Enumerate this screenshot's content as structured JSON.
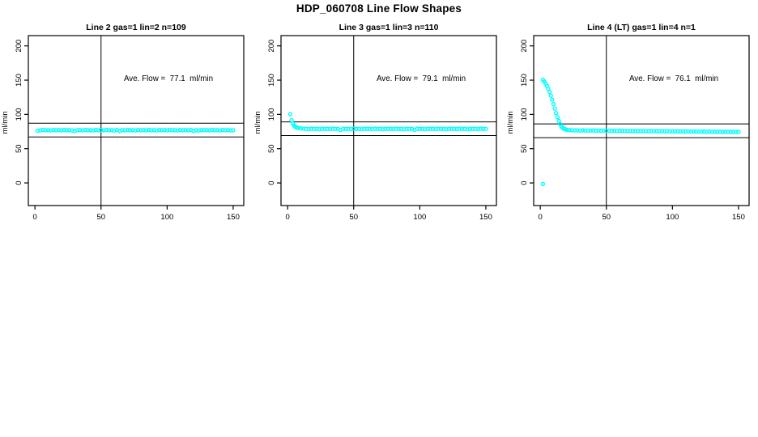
{
  "page": {
    "title": "HDP_060708  Line Flow Shapes"
  },
  "colors": {
    "marker": "#00FFFF",
    "axis": "#000000",
    "background": "#FFFFFF"
  },
  "chart_data": [
    {
      "type": "scatter",
      "title": "Line 2 gas=1 lin=2 n=109",
      "annotation": "Ave. Flow =  77.1  ml/min",
      "avg_flow": 77.1,
      "n": 109,
      "ylabel": "ml/min",
      "xlim": [
        -5,
        158
      ],
      "ylim": [
        -33,
        215
      ],
      "xticks": [
        0,
        50,
        100,
        150
      ],
      "yticks": [
        0,
        50,
        100,
        150,
        200
      ],
      "vline_x": 50,
      "hlines": [
        87.1,
        67.1
      ],
      "marker_color": "#00FFFF",
      "points": [
        [
          2,
          76.2
        ],
        [
          4,
          76.7
        ],
        [
          6,
          77.4
        ],
        [
          8,
          76.9
        ],
        [
          10,
          77.1
        ],
        [
          12,
          76.6
        ],
        [
          14,
          77.3
        ],
        [
          16,
          77.0
        ],
        [
          18,
          77.2
        ],
        [
          20,
          76.7
        ],
        [
          22,
          77.4
        ],
        [
          24,
          76.9
        ],
        [
          26,
          77.1
        ],
        [
          28,
          76.6
        ],
        [
          30,
          75.6
        ],
        [
          32,
          77.0
        ],
        [
          34,
          77.2
        ],
        [
          36,
          76.7
        ],
        [
          38,
          77.4
        ],
        [
          40,
          76.9
        ],
        [
          42,
          77.1
        ],
        [
          44,
          76.6
        ],
        [
          46,
          77.3
        ],
        [
          48,
          77.0
        ],
        [
          50,
          77.2
        ],
        [
          52,
          76.7
        ],
        [
          54,
          77.4
        ],
        [
          56,
          76.9
        ],
        [
          58,
          77.1
        ],
        [
          60,
          76.6
        ],
        [
          62,
          77.3
        ],
        [
          64,
          75.8
        ],
        [
          66,
          77.2
        ],
        [
          68,
          76.7
        ],
        [
          70,
          77.4
        ],
        [
          72,
          76.9
        ],
        [
          74,
          77.1
        ],
        [
          76,
          76.6
        ],
        [
          78,
          77.3
        ],
        [
          80,
          77.0
        ],
        [
          82,
          77.2
        ],
        [
          84,
          76.7
        ],
        [
          86,
          77.4
        ],
        [
          88,
          76.9
        ],
        [
          90,
          77.1
        ],
        [
          92,
          76.6
        ],
        [
          94,
          77.3
        ],
        [
          96,
          77.0
        ],
        [
          98,
          77.2
        ],
        [
          100,
          76.7
        ],
        [
          102,
          77.4
        ],
        [
          104,
          76.9
        ],
        [
          106,
          77.1
        ],
        [
          108,
          76.6
        ],
        [
          110,
          77.3
        ],
        [
          112,
          77.0
        ],
        [
          114,
          77.2
        ],
        [
          116,
          76.7
        ],
        [
          118,
          77.4
        ],
        [
          120,
          75.9
        ],
        [
          122,
          77.1
        ],
        [
          124,
          76.6
        ],
        [
          126,
          77.3
        ],
        [
          128,
          77.0
        ],
        [
          130,
          77.2
        ],
        [
          132,
          76.7
        ],
        [
          134,
          77.4
        ],
        [
          136,
          76.9
        ],
        [
          138,
          77.1
        ],
        [
          140,
          76.6
        ],
        [
          142,
          77.3
        ],
        [
          144,
          77.0
        ],
        [
          146,
          77.2
        ],
        [
          148,
          76.7
        ],
        [
          150,
          77.0
        ]
      ]
    },
    {
      "type": "scatter",
      "title": "Line 3 gas=1 lin=3 n=110",
      "annotation": "Ave. Flow =  79.1  ml/min",
      "avg_flow": 79.1,
      "n": 110,
      "ylabel": "ml/min",
      "xlim": [
        -5,
        158
      ],
      "ylim": [
        -33,
        215
      ],
      "xticks": [
        0,
        50,
        100,
        150
      ],
      "yticks": [
        0,
        50,
        100,
        150,
        200
      ],
      "vline_x": 50,
      "hlines": [
        89.1,
        69.1
      ],
      "marker_color": "#00FFFF",
      "points": [
        [
          2,
          100.3
        ],
        [
          3,
          91.5
        ],
        [
          4,
          86.5
        ],
        [
          5,
          83.5
        ],
        [
          6,
          81.8
        ],
        [
          7,
          80.8
        ],
        [
          8,
          80.2
        ],
        [
          10,
          79.6
        ],
        [
          12,
          79.2
        ],
        [
          14,
          79.0
        ],
        [
          16,
          78.5
        ],
        [
          18,
          79.2
        ],
        [
          20,
          78.7
        ],
        [
          22,
          78.9
        ],
        [
          24,
          78.4
        ],
        [
          26,
          79.1
        ],
        [
          28,
          78.8
        ],
        [
          30,
          79.0
        ],
        [
          32,
          78.5
        ],
        [
          34,
          79.2
        ],
        [
          36,
          78.7
        ],
        [
          38,
          78.9
        ],
        [
          40,
          77.3
        ],
        [
          42,
          79.1
        ],
        [
          44,
          78.8
        ],
        [
          46,
          79.0
        ],
        [
          48,
          78.5
        ],
        [
          50,
          79.2
        ],
        [
          52,
          78.7
        ],
        [
          54,
          78.9
        ],
        [
          56,
          78.4
        ],
        [
          58,
          79.1
        ],
        [
          60,
          78.8
        ],
        [
          62,
          79.0
        ],
        [
          64,
          78.5
        ],
        [
          66,
          79.2
        ],
        [
          68,
          78.7
        ],
        [
          70,
          78.9
        ],
        [
          72,
          78.4
        ],
        [
          74,
          79.1
        ],
        [
          76,
          78.8
        ],
        [
          78,
          79.0
        ],
        [
          80,
          78.5
        ],
        [
          82,
          79.2
        ],
        [
          84,
          78.7
        ],
        [
          86,
          78.9
        ],
        [
          88,
          78.4
        ],
        [
          90,
          79.1
        ],
        [
          92,
          78.8
        ],
        [
          94,
          79.0
        ],
        [
          96,
          77.5
        ],
        [
          98,
          79.2
        ],
        [
          100,
          78.7
        ],
        [
          102,
          78.9
        ],
        [
          104,
          78.4
        ],
        [
          106,
          79.1
        ],
        [
          108,
          78.8
        ],
        [
          110,
          79.0
        ],
        [
          112,
          78.5
        ],
        [
          114,
          79.2
        ],
        [
          116,
          78.7
        ],
        [
          118,
          78.9
        ],
        [
          120,
          78.4
        ],
        [
          122,
          79.1
        ],
        [
          124,
          78.8
        ],
        [
          126,
          79.0
        ],
        [
          128,
          78.5
        ],
        [
          130,
          79.2
        ],
        [
          132,
          78.7
        ],
        [
          134,
          78.9
        ],
        [
          136,
          78.4
        ],
        [
          138,
          79.1
        ],
        [
          140,
          78.8
        ],
        [
          142,
          79.0
        ],
        [
          144,
          78.5
        ],
        [
          146,
          79.2
        ],
        [
          148,
          78.7
        ],
        [
          150,
          78.9
        ]
      ]
    },
    {
      "type": "scatter",
      "title": "Line 4 (LT) gas=1 lin=4 n=1",
      "annotation": "Ave. Flow =  76.1  ml/min",
      "avg_flow": 76.1,
      "n": 1,
      "ylabel": "ml/min",
      "xlim": [
        -5,
        158
      ],
      "ylim": [
        -33,
        215
      ],
      "xticks": [
        0,
        50,
        100,
        150
      ],
      "yticks": [
        0,
        50,
        100,
        150,
        200
      ],
      "vline_x": 50,
      "hlines": [
        86.1,
        66.1
      ],
      "marker_color": "#00FFFF",
      "points": [
        [
          2,
          -1.5
        ],
        [
          2,
          150.5
        ],
        [
          3,
          148.0
        ],
        [
          4,
          145.0
        ],
        [
          5,
          141.5
        ],
        [
          6,
          137.5
        ],
        [
          7,
          133.0
        ],
        [
          8,
          127.5
        ],
        [
          9,
          121.5
        ],
        [
          10,
          115.0
        ],
        [
          11,
          108.5
        ],
        [
          12,
          102.0
        ],
        [
          13,
          96.0
        ],
        [
          14,
          90.5
        ],
        [
          15,
          86.0
        ],
        [
          16,
          82.5
        ],
        [
          17,
          80.5
        ],
        [
          18,
          79.0
        ],
        [
          19,
          78.2
        ],
        [
          20,
          77.6
        ],
        [
          22,
          77.2
        ],
        [
          24,
          76.9
        ],
        [
          26,
          76.7
        ],
        [
          28,
          76.7
        ],
        [
          30,
          76.4
        ],
        [
          32,
          76.8
        ],
        [
          34,
          76.4
        ],
        [
          36,
          76.6
        ],
        [
          38,
          76.3
        ],
        [
          40,
          76.6
        ],
        [
          42,
          76.2
        ],
        [
          44,
          76.5
        ],
        [
          46,
          76.1
        ],
        [
          48,
          76.4
        ],
        [
          50,
          76.1
        ],
        [
          52,
          76.3
        ],
        [
          54,
          76.0
        ],
        [
          56,
          76.3
        ],
        [
          58,
          75.9
        ],
        [
          60,
          76.2
        ],
        [
          62,
          75.9
        ],
        [
          64,
          76.1
        ],
        [
          66,
          75.8
        ],
        [
          68,
          76.0
        ],
        [
          70,
          75.7
        ],
        [
          72,
          75.9
        ],
        [
          74,
          75.6
        ],
        [
          76,
          75.9
        ],
        [
          78,
          75.6
        ],
        [
          80,
          75.8
        ],
        [
          82,
          75.5
        ],
        [
          84,
          75.7
        ],
        [
          86,
          75.4
        ],
        [
          88,
          75.6
        ],
        [
          90,
          75.3
        ],
        [
          92,
          75.6
        ],
        [
          94,
          75.3
        ],
        [
          96,
          75.5
        ],
        [
          98,
          75.2
        ],
        [
          100,
          75.4
        ],
        [
          102,
          75.1
        ],
        [
          104,
          75.4
        ],
        [
          106,
          75.1
        ],
        [
          108,
          75.3
        ],
        [
          110,
          75.0
        ],
        [
          112,
          75.2
        ],
        [
          114,
          74.9
        ],
        [
          116,
          75.2
        ],
        [
          118,
          74.9
        ],
        [
          120,
          75.1
        ],
        [
          122,
          74.8
        ],
        [
          124,
          75.0
        ],
        [
          126,
          74.7
        ],
        [
          128,
          75.0
        ],
        [
          130,
          74.7
        ],
        [
          132,
          74.9
        ],
        [
          134,
          74.6
        ],
        [
          136,
          74.8
        ],
        [
          138,
          74.5
        ],
        [
          140,
          74.8
        ],
        [
          142,
          74.5
        ],
        [
          144,
          74.7
        ],
        [
          146,
          74.4
        ],
        [
          148,
          74.6
        ],
        [
          150,
          74.5
        ]
      ]
    }
  ]
}
